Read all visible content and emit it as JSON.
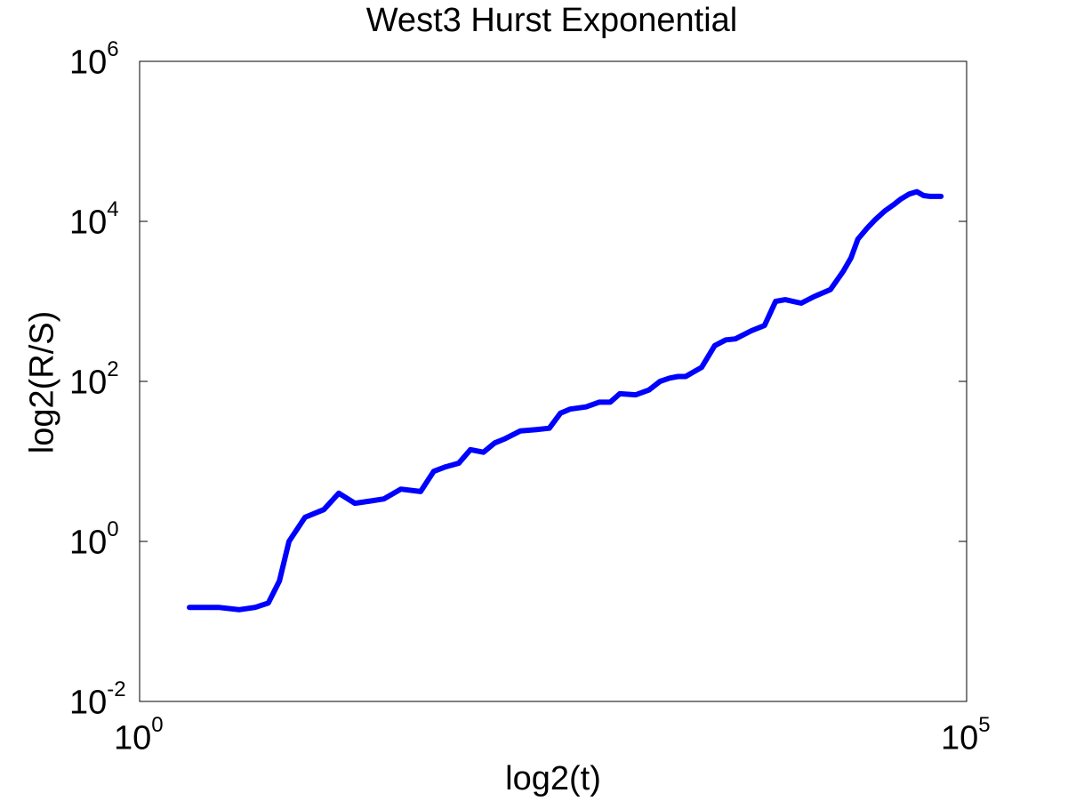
{
  "chart_data": {
    "type": "line",
    "title": "West3 Hurst Exponential",
    "xlabel": "log2(t)",
    "ylabel": "log2(R/S)",
    "xscale": "log",
    "yscale": "log",
    "xlim": [
      1,
      100000
    ],
    "ylim": [
      0.01,
      1000000
    ],
    "x_ticks": [
      {
        "base": "10",
        "exp": "0"
      },
      {
        "base": "10",
        "exp": "5"
      }
    ],
    "y_ticks": [
      {
        "base": "10",
        "exp": "-2"
      },
      {
        "base": "10",
        "exp": "0"
      },
      {
        "base": "10",
        "exp": "2"
      },
      {
        "base": "10",
        "exp": "4"
      },
      {
        "base": "10",
        "exp": "6"
      }
    ],
    "grid": false,
    "line_color": "#0000ff",
    "series": [
      {
        "x": [
          2,
          3,
          4,
          5,
          6,
          7,
          8,
          10,
          13,
          16,
          20,
          25,
          30,
          38,
          50,
          60,
          70,
          85,
          100,
          120,
          140,
          160,
          200,
          250,
          300,
          350,
          400,
          500,
          600,
          700,
          800,
          1000,
          1200,
          1400,
          1600,
          1800,
          2000,
          2500,
          3000,
          3500,
          4000,
          5000,
          6000,
          7000,
          8000,
          10000,
          12000,
          15000,
          18000,
          20000,
          22000,
          25000,
          28000,
          32000,
          36000,
          40000,
          45000,
          50000,
          55000,
          60000,
          65000,
          70000
        ],
        "y": [
          0.15,
          0.15,
          0.14,
          0.15,
          0.17,
          0.32,
          1.0,
          2.0,
          2.5,
          4.0,
          3.0,
          3.2,
          3.4,
          4.5,
          4.2,
          7.5,
          8.5,
          9.5,
          14,
          13,
          17,
          19,
          24,
          25,
          26,
          40,
          45,
          48,
          55,
          55,
          70,
          68,
          78,
          100,
          110,
          115,
          115,
          150,
          280,
          330,
          340,
          430,
          500,
          1000,
          1050,
          950,
          1150,
          1400,
          2400,
          3500,
          6000,
          8200,
          10500,
          13500,
          16000,
          19000,
          22000,
          23500,
          21000,
          20500,
          20500,
          20500
        ]
      }
    ]
  }
}
